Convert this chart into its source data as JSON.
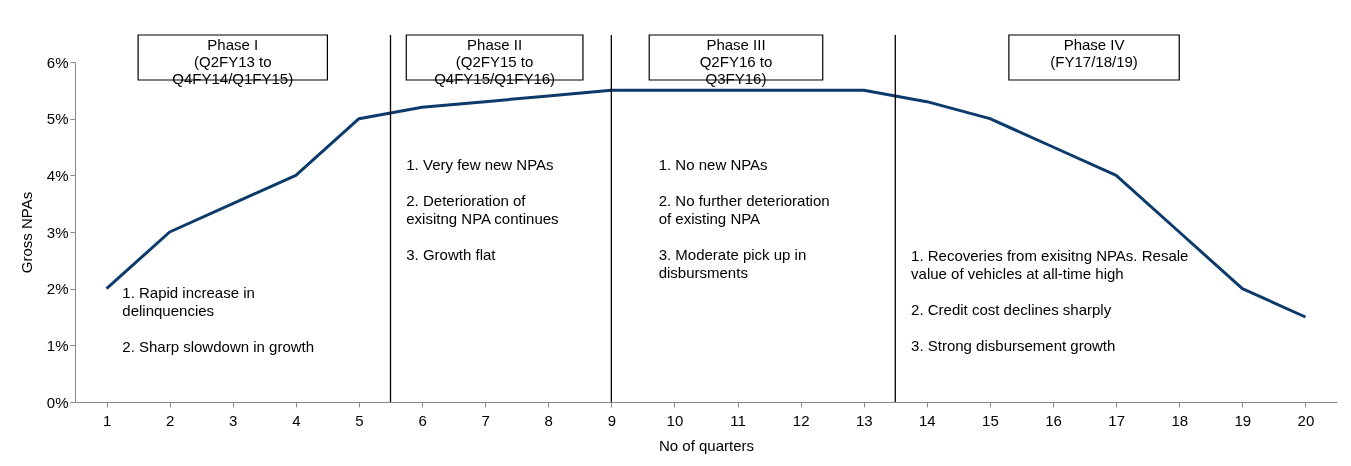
{
  "chart_data": {
    "type": "line",
    "xlabel": "No of quarters",
    "ylabel": "Gross NPAs",
    "x": [
      1,
      2,
      3,
      4,
      5,
      6,
      7,
      8,
      9,
      10,
      11,
      12,
      13,
      14,
      15,
      16,
      17,
      18,
      19,
      20
    ],
    "series": [
      {
        "color": "#0b3a6b",
        "values": [
          2,
          3,
          3.5,
          4,
          5,
          5.2,
          5.3,
          5.4,
          5.5,
          5.5,
          5.5,
          5.5,
          5.5,
          5.3,
          5,
          4.5,
          4,
          3,
          2,
          1.5
        ]
      }
    ],
    "xlim": [
      0.5,
      20.5
    ],
    "xticks": [
      1,
      2,
      3,
      4,
      5,
      6,
      7,
      8,
      9,
      10,
      11,
      12,
      13,
      14,
      15,
      16,
      17,
      18,
      19,
      20
    ],
    "ylim": [
      0,
      6
    ],
    "yticks": [
      {
        "value": 0,
        "label": "0%"
      },
      {
        "value": 1,
        "label": "1%"
      },
      {
        "value": 2,
        "label": "2%"
      },
      {
        "value": 3,
        "label": "3%"
      },
      {
        "value": 4,
        "label": "4%"
      },
      {
        "value": 5,
        "label": "5%"
      },
      {
        "value": 6,
        "label": "6%"
      }
    ],
    "grid": false,
    "marker": "none",
    "line_style": "solid",
    "ref_lines": [
      {
        "axis": "x",
        "value": 5.5,
        "color": "#000000"
      },
      {
        "axis": "x",
        "value": 9,
        "color": "#000000"
      },
      {
        "axis": "x",
        "value": 13.5,
        "color": "#000000"
      }
    ],
    "annotations": [
      "Phase I\n(Q2FY13 to\nQ4FY14/Q1FY15)",
      "Phase II\n(Q2FY15 to\nQ4FY15/Q1FY16)",
      "Phase III\nQ2FY16 to\nQ3FY16)",
      "Phase IV\n(FY17/18/19)",
      "1. Rapid increase in\ndelinquencies\n\n2. Sharp slowdown in growth",
      "1. Very few new NPAs\n\n2. Deterioration of\nexisitng NPA continues\n\n3. Growth flat",
      "1. No new NPAs\n\n2. No further deterioration\nof existing NPA\n\n3. Moderate pick up in\ndisbursments",
      "1. Recoveries from exisitng NPAs. Resale\nvalue of vehicles at all-time high\n\n2. Credit cost declines sharply\n\n3. Strong disbursement growth"
    ]
  }
}
